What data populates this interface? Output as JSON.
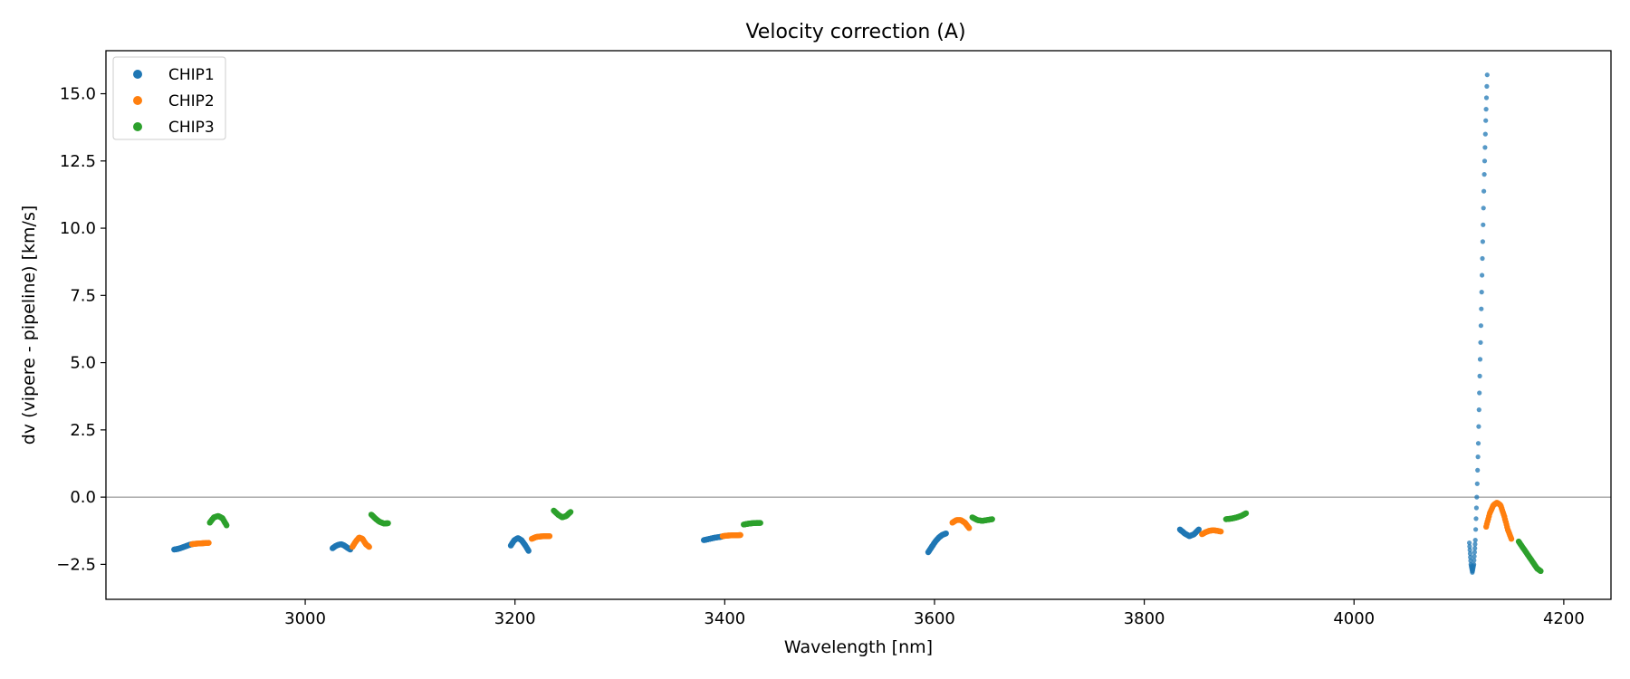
{
  "chart_data": {
    "type": "scatter",
    "title": "Velocity correction (A)",
    "xlabel": "Wavelength [nm]",
    "ylabel": "dv (vipere - pipeline) [km/s]",
    "xlim": [
      2810,
      4245
    ],
    "ylim": [
      -3.8,
      16.6
    ],
    "xticks": [
      3000,
      3200,
      3400,
      3600,
      3800,
      4000,
      4200
    ],
    "yticks": [
      -2.5,
      0.0,
      2.5,
      5.0,
      7.5,
      10.0,
      12.5,
      15.0
    ],
    "ytick_labels": [
      "−2.5",
      "0.0",
      "2.5",
      "5.0",
      "7.5",
      "10.0",
      "12.5",
      "15.0"
    ],
    "reference_line": {
      "y": 0.0,
      "color": "#808080"
    },
    "grid": false,
    "legend_position": "top-left",
    "series": [
      {
        "name": "CHIP1",
        "color": "#1f77b4",
        "segments": [
          {
            "x0": 2875,
            "x1": 2892,
            "y": [
              -1.95,
              -1.93,
              -1.9,
              -1.86,
              -1.82,
              -1.78,
              -1.75
            ]
          },
          {
            "x0": 3026,
            "x1": 3043,
            "y": [
              -1.9,
              -1.82,
              -1.77,
              -1.75,
              -1.8,
              -1.88,
              -1.95
            ]
          },
          {
            "x0": 3196,
            "x1": 3213,
            "y": [
              -1.8,
              -1.6,
              -1.52,
              -1.6,
              -1.78,
              -2.0
            ]
          },
          {
            "x0": 3380,
            "x1": 3397,
            "y": [
              -1.6,
              -1.57,
              -1.54,
              -1.51,
              -1.49,
              -1.47
            ]
          },
          {
            "x0": 3594,
            "x1": 3611,
            "y": [
              -2.05,
              -1.85,
              -1.65,
              -1.5,
              -1.4,
              -1.35
            ]
          },
          {
            "x0": 3834,
            "x1": 3852,
            "y": [
              -1.2,
              -1.35,
              -1.45,
              -1.38,
              -1.2
            ]
          },
          {
            "x0": 4110,
            "x1": 4127,
            "y": [
              -1.7,
              -2.5,
              -2.8,
              -2.5,
              -1.6,
              0.0,
              2.0,
              4.5,
              7.0,
              9.5,
              12.0,
              14.0,
              15.7
            ]
          }
        ]
      },
      {
        "name": "CHIP2",
        "color": "#ff7f0e",
        "segments": [
          {
            "x0": 2892,
            "x1": 2908,
            "y": [
              -1.75,
              -1.73,
              -1.72,
              -1.71,
              -1.7
            ]
          },
          {
            "x0": 3045,
            "x1": 3061,
            "y": [
              -1.85,
              -1.65,
              -1.5,
              -1.55,
              -1.75,
              -1.85
            ]
          },
          {
            "x0": 3216,
            "x1": 3233,
            "y": [
              -1.55,
              -1.48,
              -1.46,
              -1.45,
              -1.45
            ]
          },
          {
            "x0": 3398,
            "x1": 3415,
            "y": [
              -1.45,
              -1.43,
              -1.42,
              -1.42,
              -1.41
            ]
          },
          {
            "x0": 3617,
            "x1": 3633,
            "y": [
              -0.95,
              -0.85,
              -0.85,
              -0.95,
              -1.15
            ]
          },
          {
            "x0": 3855,
            "x1": 3873,
            "y": [
              -1.38,
              -1.3,
              -1.25,
              -1.23,
              -1.25,
              -1.28
            ]
          },
          {
            "x0": 4126,
            "x1": 4150,
            "y": [
              -1.1,
              -0.6,
              -0.3,
              -0.2,
              -0.3,
              -0.7,
              -1.2,
              -1.55
            ]
          }
        ]
      },
      {
        "name": "CHIP3",
        "color": "#2ca02c",
        "segments": [
          {
            "x0": 2909,
            "x1": 2925,
            "y": [
              -0.95,
              -0.75,
              -0.7,
              -0.78,
              -1.05
            ]
          },
          {
            "x0": 3063,
            "x1": 3079,
            "y": [
              -0.65,
              -0.8,
              -0.92,
              -0.98,
              -0.97
            ]
          },
          {
            "x0": 3237,
            "x1": 3253,
            "y": [
              -0.5,
              -0.65,
              -0.75,
              -0.7,
              -0.55
            ]
          },
          {
            "x0": 3418,
            "x1": 3434,
            "y": [
              -1.02,
              -0.99,
              -0.97,
              -0.96,
              -0.96
            ]
          },
          {
            "x0": 3636,
            "x1": 3655,
            "y": [
              -0.75,
              -0.85,
              -0.88,
              -0.85,
              -0.82
            ]
          },
          {
            "x0": 3878,
            "x1": 3897,
            "y": [
              -0.82,
              -0.8,
              -0.76,
              -0.7,
              -0.6
            ]
          },
          {
            "x0": 4157,
            "x1": 4178,
            "y": [
              -1.65,
              -1.85,
              -2.05,
              -2.25,
              -2.45,
              -2.65,
              -2.75
            ]
          }
        ]
      }
    ]
  }
}
